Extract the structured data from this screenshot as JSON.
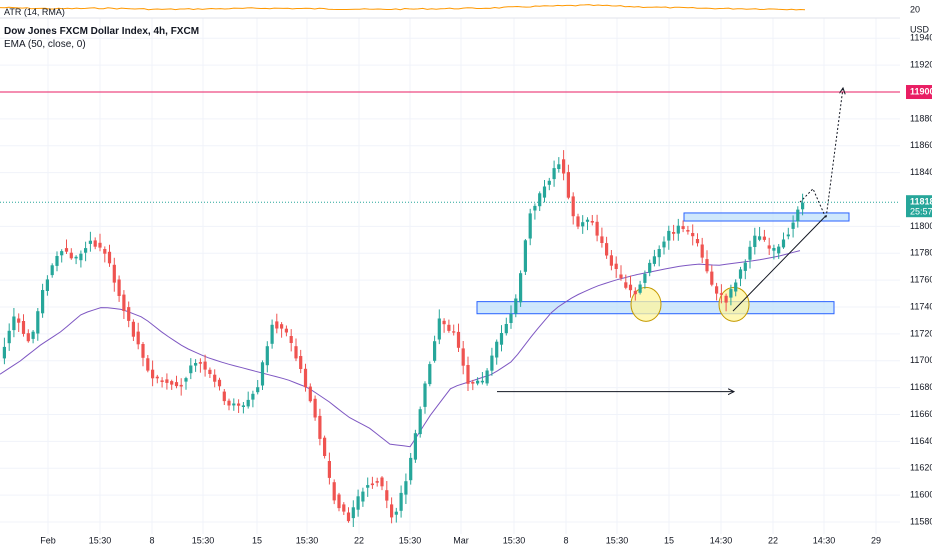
{
  "header": {
    "atr_label": "ATR (14, RMA)",
    "atr_axis_tick": "20",
    "symbol_title": "Dow Jones FXCM Dollar Index, 4h, FXCM",
    "ema_label": "EMA (50, close, 0)"
  },
  "colors": {
    "up": "#26a69a",
    "down": "#ef5350",
    "ema": "#7e57c2",
    "atr": "#ff9800",
    "resistance_line": "#e91e63",
    "price_line": "#26a69a",
    "zone_fill": "#bbdefb",
    "zone_stroke": "#2962ff",
    "circle_fill": "#fff59d",
    "circle_stroke": "#c59a00",
    "annotation": "#131722",
    "grid": "#f0f3fa"
  },
  "chart_data": {
    "type": "candlestick",
    "title": "Dow Jones FXCM Dollar Index, 4h, FXCM",
    "xlabel": "",
    "ylabel": "",
    "currency": "USD",
    "ylim": [
      11570,
      11955
    ],
    "grid": true,
    "y_ticks": [
      "11940",
      "11920",
      "11880",
      "11860",
      "11840",
      "11800",
      "11780",
      "11760",
      "11740",
      "11720",
      "11700",
      "11680",
      "11660",
      "11640",
      "11620",
      "11600",
      "11580"
    ],
    "x_ticks": [
      "Feb",
      "15:30",
      "8",
      "15:30",
      "15",
      "15:30",
      "22",
      "15:30",
      "Mar",
      "15:30",
      "8",
      "15:30",
      "15",
      "14:30",
      "22",
      "14:30",
      "29"
    ],
    "price_labels": [
      {
        "text": "11900",
        "value": 11900,
        "kind": "resistance"
      },
      {
        "text": "11818",
        "value": 11818,
        "kind": "last",
        "countdown": "25:57"
      }
    ],
    "series": [
      {
        "type": "candlestick",
        "anchors": [
          11702,
          11735,
          11712,
          11758,
          11785,
          11775,
          11790,
          11780,
          11745,
          11715,
          11688,
          11685,
          11683,
          11702,
          11690,
          11668,
          11665,
          11680,
          11730,
          11718,
          11690,
          11650,
          11600,
          11582,
          11605,
          11612,
          11580,
          11620,
          11680,
          11730,
          11720,
          11680,
          11685,
          11720,
          11740,
          11810,
          11830,
          11850,
          11800,
          11805,
          11780,
          11760,
          11750,
          11775,
          11793,
          11800,
          11790,
          11755,
          11745,
          11770,
          11795,
          11780,
          11795,
          11818
        ]
      },
      {
        "type": "line",
        "name": "EMA (50, close, 0)",
        "anchors": [
          11690,
          11700,
          11712,
          11722,
          11735,
          11740,
          11738,
          11732,
          11720,
          11710,
          11703,
          11698,
          11694,
          11690,
          11686,
          11680,
          11670,
          11658,
          11650,
          11638,
          11636,
          11660,
          11680,
          11685,
          11690,
          11700,
          11720,
          11738,
          11748,
          11755,
          11760,
          11764,
          11767,
          11770,
          11772,
          11771,
          11773,
          11775,
          11778,
          11782
        ]
      },
      {
        "type": "line",
        "name": "ATR (14, RMA)",
        "anchors": [
          20.4,
          20.2,
          20.3,
          20.1,
          20.2,
          20.3,
          20.2,
          20.1,
          20.2,
          20.3,
          20.6,
          20.8,
          20.5,
          20.3,
          20.2,
          20.1
        ]
      }
    ],
    "zones": [
      {
        "from": 11735,
        "to": 11744
      },
      {
        "from": 11804,
        "to": 11810
      }
    ],
    "annotations": [
      {
        "kind": "horizontal-ray",
        "value": 11677
      },
      {
        "kind": "trendline",
        "from_value": 11737,
        "to_value": 11808
      },
      {
        "kind": "projection",
        "from_value": 11806,
        "to_value": 11903
      }
    ]
  }
}
